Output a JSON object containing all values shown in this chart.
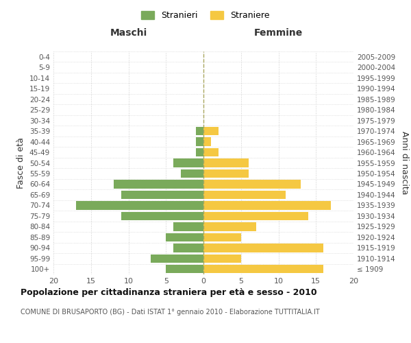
{
  "age_groups": [
    "100+",
    "95-99",
    "90-94",
    "85-89",
    "80-84",
    "75-79",
    "70-74",
    "65-69",
    "60-64",
    "55-59",
    "50-54",
    "45-49",
    "40-44",
    "35-39",
    "30-34",
    "25-29",
    "20-24",
    "15-19",
    "10-14",
    "5-9",
    "0-4"
  ],
  "birth_years": [
    "≤ 1909",
    "1910-1914",
    "1915-1919",
    "1920-1924",
    "1925-1929",
    "1930-1934",
    "1935-1939",
    "1940-1944",
    "1945-1949",
    "1950-1954",
    "1955-1959",
    "1960-1964",
    "1965-1969",
    "1970-1974",
    "1975-1979",
    "1980-1984",
    "1985-1989",
    "1990-1994",
    "1995-1999",
    "2000-2004",
    "2005-2009"
  ],
  "maschi": [
    0,
    0,
    0,
    0,
    0,
    0,
    0,
    1,
    1,
    1,
    4,
    3,
    12,
    11,
    17,
    11,
    4,
    5,
    4,
    7,
    5
  ],
  "femmine": [
    0,
    0,
    0,
    0,
    0,
    0,
    0,
    2,
    1,
    2,
    6,
    6,
    13,
    11,
    17,
    14,
    7,
    5,
    16,
    5,
    16
  ],
  "color_maschi": "#7aaa5b",
  "color_femmine": "#f5c842",
  "title": "Popolazione per cittadinanza straniera per età e sesso - 2010",
  "subtitle": "COMUNE DI BRUSAPORTO (BG) - Dati ISTAT 1° gennaio 2010 - Elaborazione TUTTITALIA.IT",
  "legend_maschi": "Stranieri",
  "legend_femmine": "Straniere",
  "xlabel_left": "Maschi",
  "xlabel_right": "Femmine",
  "ylabel_left": "Fasce di età",
  "ylabel_right": "Anni di nascita",
  "xlim": 20,
  "background_color": "#ffffff",
  "grid_color": "#cccccc"
}
